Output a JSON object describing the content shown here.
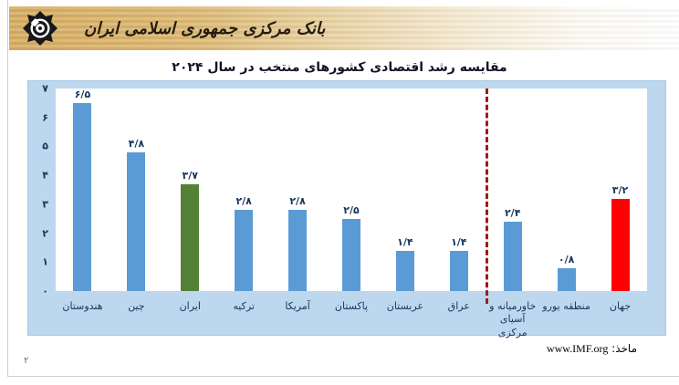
{
  "page": {
    "number_fa": "۲"
  },
  "header": {
    "bank_name": "بانک مرکزی جمهوری اسلامی ایران",
    "logo_icon": "central-bank-of-iran-emblem"
  },
  "chart_data": {
    "type": "bar",
    "title": "مقایسه رشد اقتصادی کشورهای منتخب در سال ۲۰۲۴",
    "source_label": "ماخذ:",
    "source_url": "www.IMF.org",
    "ylim": [
      0,
      7
    ],
    "y_ticks_fa": [
      "۷",
      "۶",
      "۵",
      "۴",
      "۳",
      "۲",
      "۱",
      "۰"
    ],
    "grid": false,
    "legend": false,
    "separator_after_index": 7,
    "colors": {
      "bar_default": "#5b9bd5",
      "bar_iran": "#538135",
      "bar_world": "#fe0000",
      "separator_line": "#9e1b15",
      "frame_background": "#bdd7ee",
      "text": "#17375d"
    },
    "bars": [
      {
        "key": "india",
        "label_fa": "هندوستان",
        "value": 6.5,
        "value_fa": "۶/۵",
        "color": "#5b9bd5"
      },
      {
        "key": "china",
        "label_fa": "چین",
        "value": 4.8,
        "value_fa": "۴/۸",
        "color": "#5b9bd5"
      },
      {
        "key": "iran",
        "label_fa": "ایران",
        "value": 3.7,
        "value_fa": "۳/۷",
        "color": "#538135"
      },
      {
        "key": "turkey",
        "label_fa": "ترکیه",
        "value": 2.8,
        "value_fa": "۲/۸",
        "color": "#5b9bd5"
      },
      {
        "key": "america",
        "label_fa": "آمریکا",
        "value": 2.8,
        "value_fa": "۲/۸",
        "color": "#5b9bd5"
      },
      {
        "key": "pakistan",
        "label_fa": "پاکستان",
        "value": 2.5,
        "value_fa": "۲/۵",
        "color": "#5b9bd5"
      },
      {
        "key": "arabestan",
        "label_fa": "عربستان",
        "value": 1.4,
        "value_fa": "۱/۴",
        "color": "#5b9bd5"
      },
      {
        "key": "iraq",
        "label_fa": "عراق",
        "value": 1.4,
        "value_fa": "۱/۴",
        "color": "#5b9bd5"
      },
      {
        "key": "mideast-casia",
        "label_fa": "خاورمیانه و آسیای مرکزی",
        "value": 2.4,
        "value_fa": "۲/۴",
        "color": "#5b9bd5"
      },
      {
        "key": "euro-area",
        "label_fa": "منطقه یورو",
        "value": 0.8,
        "value_fa": "۰/۸",
        "color": "#5b9bd5"
      },
      {
        "key": "world",
        "label_fa": "جهان",
        "value": 3.2,
        "value_fa": "۳/۲",
        "color": "#fe0000"
      }
    ]
  }
}
